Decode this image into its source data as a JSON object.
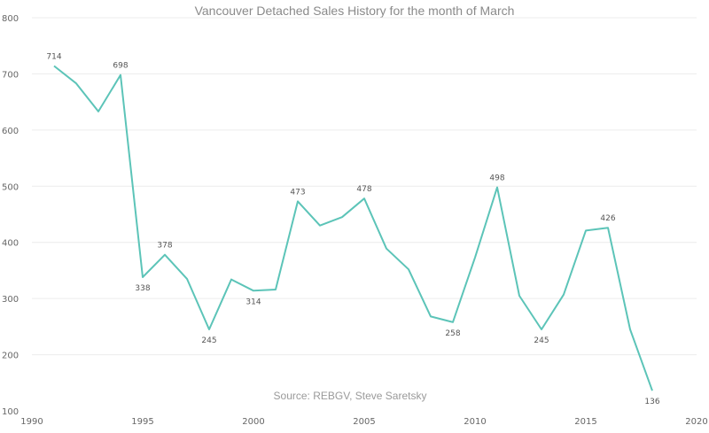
{
  "chart_data": {
    "type": "line",
    "title": "Vancouver Detached Sales History for the month of March",
    "annotation": "Source: REBGV, Steve Saretsky",
    "xlabel": "",
    "ylabel": "",
    "xlim": [
      1990,
      2020
    ],
    "ylim": [
      100,
      800
    ],
    "x_ticks": [
      1990,
      1995,
      2000,
      2005,
      2010,
      2015,
      2020
    ],
    "y_ticks": [
      100,
      200,
      300,
      400,
      500,
      600,
      700,
      800
    ],
    "grid": "horizontal",
    "line_color": "#5cc4b8",
    "series": [
      {
        "x": [
          1991,
          1992,
          1993,
          1994,
          1995,
          1996,
          1997,
          1998,
          1999,
          2000,
          2001,
          2002,
          2003,
          2004,
          2005,
          2006,
          2007,
          2008,
          2009,
          2010,
          2011,
          2012,
          2013,
          2014,
          2015,
          2016,
          2017,
          2018
        ],
        "values": [
          714,
          683,
          633,
          698,
          338,
          378,
          335,
          245,
          334,
          314,
          316,
          473,
          430,
          445,
          478,
          389,
          352,
          268,
          258,
          373,
          498,
          305,
          245,
          307,
          421,
          426,
          245,
          136
        ]
      }
    ],
    "data_labels": [
      {
        "x": 1991,
        "text": "714",
        "pos": "above"
      },
      {
        "x": 1994,
        "text": "698",
        "pos": "above"
      },
      {
        "x": 1995,
        "text": "338",
        "pos": "below"
      },
      {
        "x": 1996,
        "text": "378",
        "pos": "above"
      },
      {
        "x": 1998,
        "text": "245",
        "pos": "below"
      },
      {
        "x": 2000,
        "text": "314",
        "pos": "below"
      },
      {
        "x": 2002,
        "text": "473",
        "pos": "above"
      },
      {
        "x": 2005,
        "text": "478",
        "pos": "above"
      },
      {
        "x": 2009,
        "text": "258",
        "pos": "below"
      },
      {
        "x": 2011,
        "text": "498",
        "pos": "above"
      },
      {
        "x": 2013,
        "text": "245",
        "pos": "below"
      },
      {
        "x": 2016,
        "text": "426",
        "pos": "above"
      },
      {
        "x": 2018,
        "text": "136",
        "pos": "below"
      }
    ]
  }
}
